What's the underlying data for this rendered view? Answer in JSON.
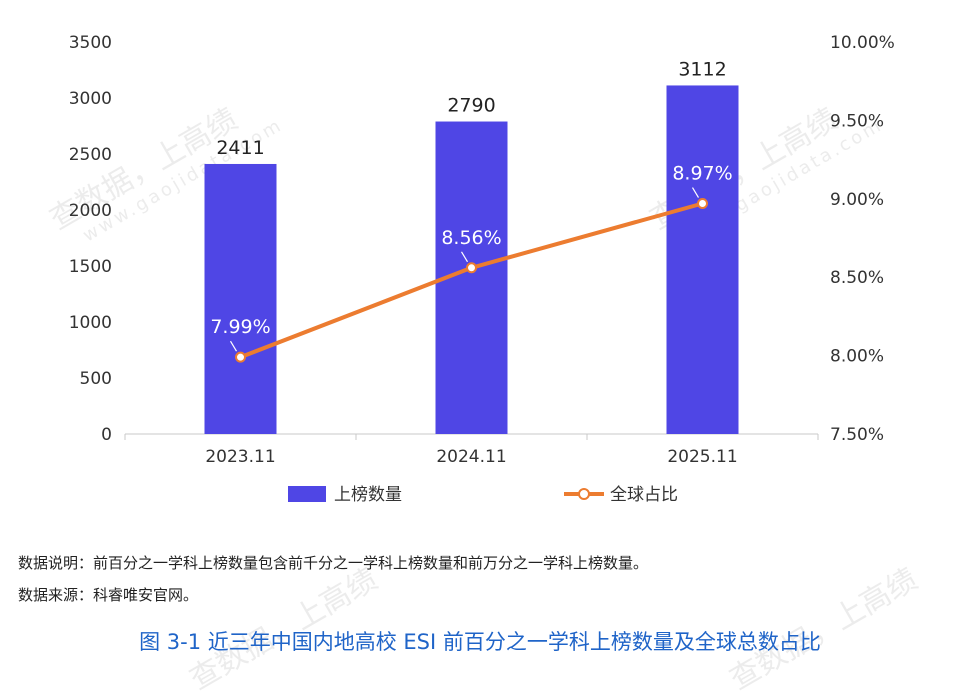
{
  "watermark": {
    "main": "查数据，上高绩",
    "url": "www.gaojidata.com"
  },
  "notes": {
    "description": "数据说明：前百分之一学科上榜数量包含前千分之一学科上榜数量和前万分之一学科上榜数量。",
    "source": "数据来源：科睿唯安官网。"
  },
  "figure_title": "图 3-1  近三年中国内地高校 ESI 前百分之一学科上榜数量及全球总数占比",
  "chart_data": {
    "type": "bar",
    "categories": [
      "2023.11",
      "2024.11",
      "2025.11"
    ],
    "series": [
      {
        "name": "上榜数量",
        "type": "bar",
        "axis": "left",
        "values": [
          2411,
          2790,
          3112
        ],
        "labels": [
          "2411",
          "2790",
          "3112"
        ],
        "color": "#4f46e5"
      },
      {
        "name": "全球占比",
        "type": "line",
        "axis": "right",
        "values": [
          7.99,
          8.56,
          8.97
        ],
        "labels": [
          "7.99%",
          "8.56%",
          "8.97%"
        ],
        "color": "#ec7c30"
      }
    ],
    "left_axis": {
      "min": 0,
      "max": 3500,
      "ticks": [
        "0",
        "500",
        "1000",
        "1500",
        "2000",
        "2500",
        "3000",
        "3500"
      ]
    },
    "right_axis": {
      "min": 7.5,
      "max": 10.0,
      "ticks": [
        "7.50%",
        "8.00%",
        "8.50%",
        "9.00%",
        "9.50%",
        "10.00%"
      ]
    },
    "legend_position": "bottom",
    "grid": false
  }
}
